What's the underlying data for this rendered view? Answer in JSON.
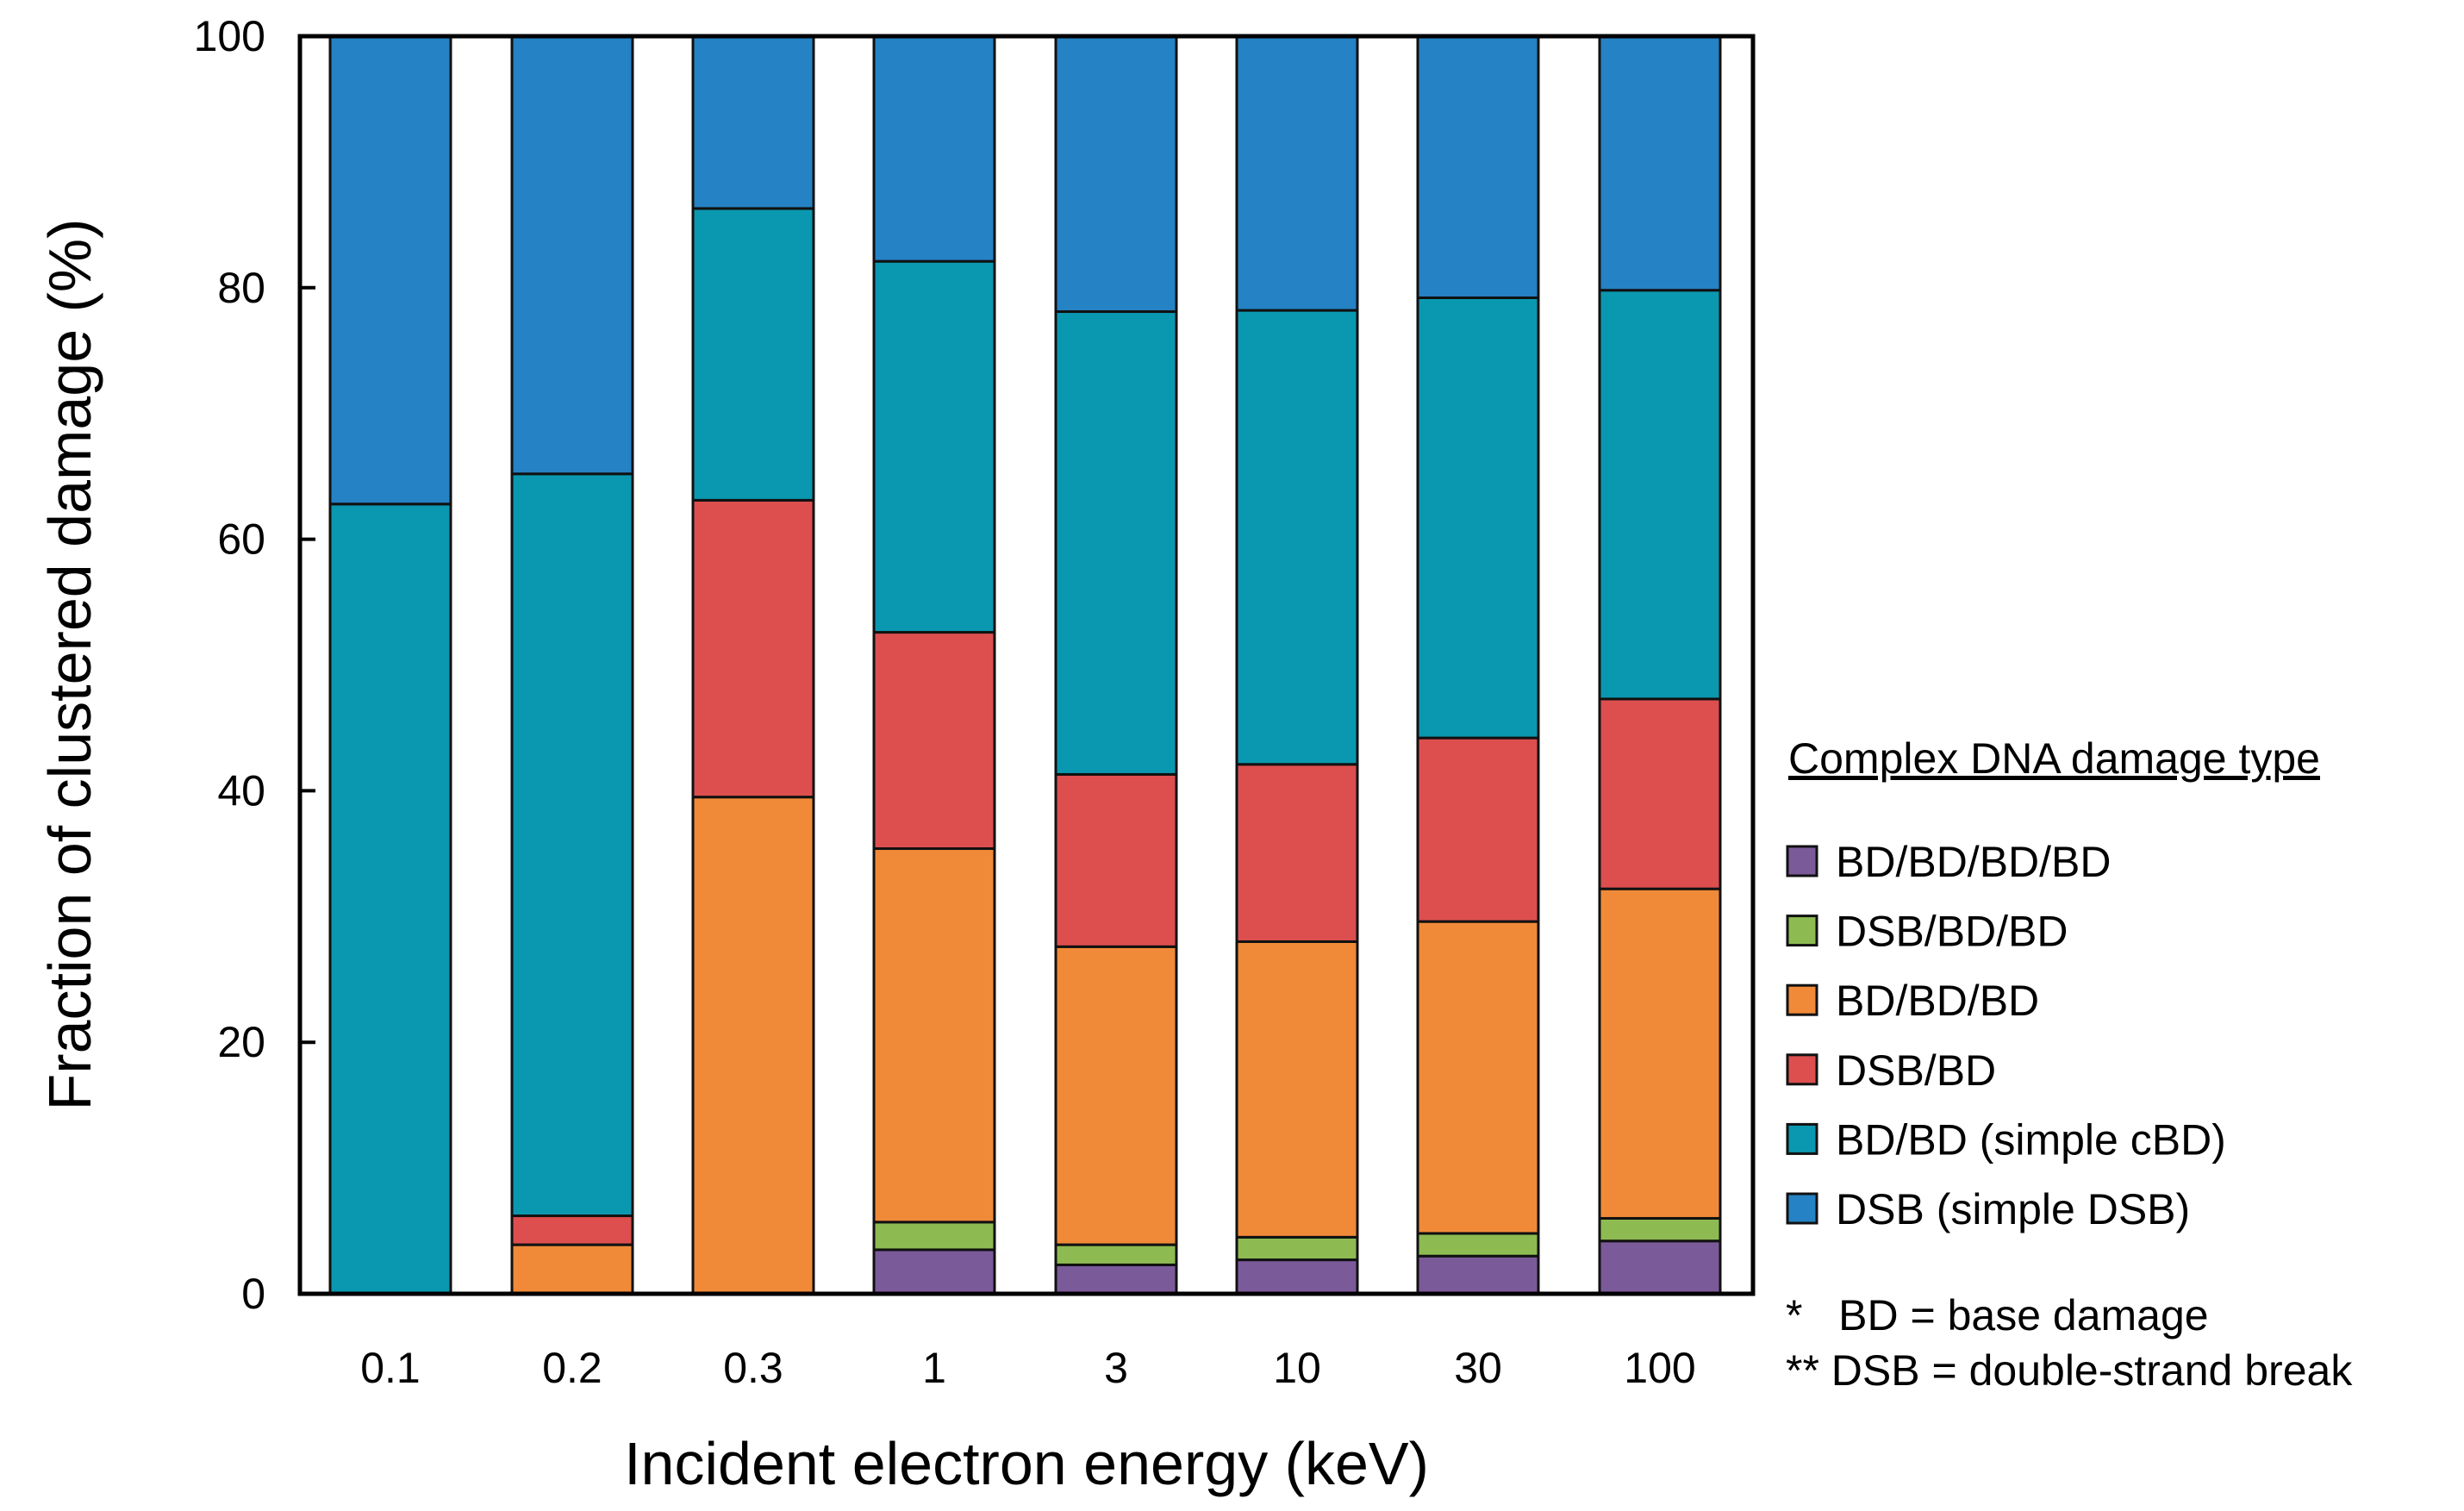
{
  "chart_data": {
    "type": "bar",
    "stacked": true,
    "title": "",
    "xlabel": "Incident electron energy (keV)",
    "ylabel": "Fraction of clustered damage (%)",
    "ylim": [
      0,
      100
    ],
    "yticks": [
      "0",
      "20",
      "40",
      "60",
      "80",
      "100"
    ],
    "categories": [
      "0.1",
      "0.2",
      "0.3",
      "1",
      "3",
      "10",
      "30",
      "100"
    ],
    "series": [
      {
        "name": "BD/BD/BD/BD",
        "color": "#7b5a9a",
        "values": [
          0,
          0,
          0,
          3.5,
          2.3,
          2.7,
          3.0,
          4.2
        ]
      },
      {
        "name": "DSB/BD/BD",
        "color": "#8dbb52",
        "values": [
          0,
          0,
          0,
          2.2,
          1.6,
          1.8,
          1.8,
          1.8
        ]
      },
      {
        "name": "BD/BD/BD",
        "color": "#f08a38",
        "values": [
          0,
          3.9,
          39.5,
          29.7,
          23.7,
          23.5,
          24.8,
          26.2
        ]
      },
      {
        "name": "DSB/BD",
        "color": "#dd4f4f",
        "values": [
          0,
          2.3,
          23.6,
          17.2,
          13.7,
          14.1,
          14.6,
          15.1
        ]
      },
      {
        "name": "BD/BD (simple cBD)",
        "color": "#0a98b0",
        "values": [
          62.8,
          59.0,
          23.2,
          29.5,
          36.8,
          36.1,
          35.0,
          32.5
        ]
      },
      {
        "name": "DSB (simple DSB)",
        "color": "#2582c4",
        "values": [
          37.2,
          34.8,
          13.7,
          17.9,
          21.9,
          21.8,
          20.8,
          20.2
        ]
      }
    ],
    "legend": {
      "title": "Complex DNA damage type",
      "position": "right",
      "order": [
        "BD/BD/BD/BD",
        "DSB/BD/BD",
        "BD/BD/BD",
        "DSB/BD",
        "BD/BD (simple cBD)",
        "DSB (simple DSB)"
      ]
    },
    "notes": [
      "*   BD = base damage",
      "** DSB = double-strand break"
    ]
  }
}
